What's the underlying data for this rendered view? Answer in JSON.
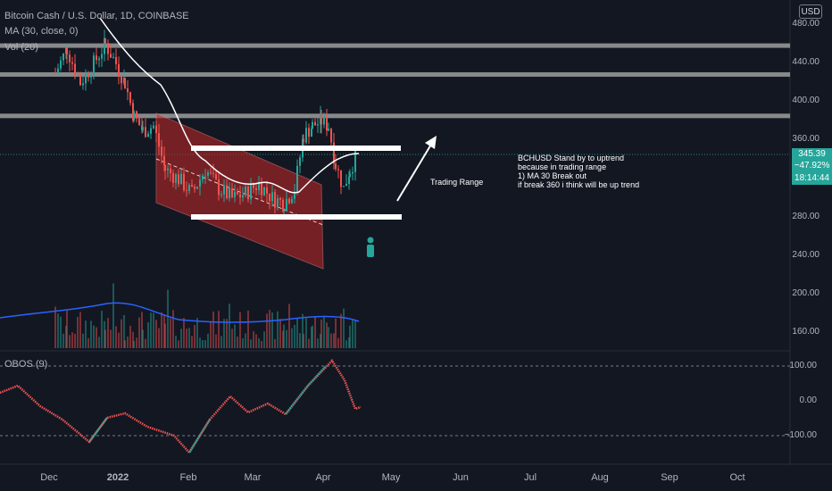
{
  "header": {
    "symbol": "Bitcoin Cash / U.S. Dollar, 1D, COINBASE",
    "ma": "MA (30, close, 0)",
    "vol": "Vol (20)",
    "obos": "OBOS (9)"
  },
  "currency": "USD",
  "price_axis": [
    "480.00",
    "440.00",
    "400.00",
    "360.00",
    "280.00",
    "240.00",
    "200.00",
    "160.00"
  ],
  "osc_axis": [
    "100.00",
    "0.00",
    "−100.00"
  ],
  "time_axis": [
    "Dec",
    "2022",
    "Feb",
    "Mar",
    "Apr",
    "May",
    "Jun",
    "Jul",
    "Aug",
    "Sep",
    "Oct"
  ],
  "last_price": {
    "price": "345.39",
    "change": "−47.92%",
    "countdown": "18:14:44"
  },
  "annotations": {
    "trading_range": "Trading Range",
    "note_lines": [
      "BCHUSD Stand by to uptrend",
      "because in trading range",
      "1) MA 30 Break out",
      "if break 360 i think will be up trend"
    ]
  },
  "colors": {
    "background": "#131722",
    "up": "#26a69a",
    "down": "#ef5350",
    "ma": "#ffffff",
    "vol_ma": "#2962ff",
    "channel": "#c62828",
    "resistance": "#9e9e9e"
  },
  "chart_data": {
    "type": "candlestick",
    "ylim": [
      140,
      490
    ],
    "x": [
      "Dec",
      "2022",
      "Feb",
      "Mar",
      "Apr",
      "May",
      "Jun",
      "Jul",
      "Aug",
      "Sep",
      "Oct"
    ],
    "horizontal_levels": [
      458,
      428,
      385
    ],
    "trading_range": [
      350,
      280
    ],
    "last_price": 345.39
  }
}
